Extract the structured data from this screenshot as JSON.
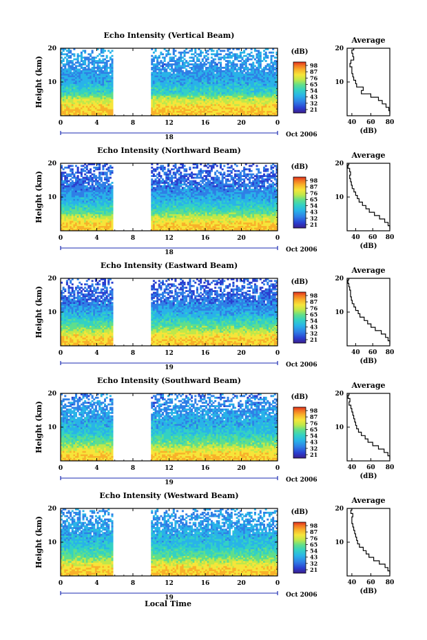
{
  "figure": {
    "x_title": "Local Time",
    "colorbar_unit": "(dB)",
    "colorbar_ticks": [
      "98",
      "87",
      "76",
      "65",
      "54",
      "43",
      "32",
      "21"
    ],
    "colors": {
      "colormap": [
        "#3c1e8c",
        "#2a3fd0",
        "#2f7fe6",
        "#29b3e8",
        "#33d1c4",
        "#5fde8c",
        "#bfe84a",
        "#f6e53a",
        "#f8b12a",
        "#f27622",
        "#e0301e"
      ],
      "gap": "#ffffff",
      "axis": "#000000",
      "date_line": "#1a2ab0"
    }
  },
  "chart_data": [
    {
      "type": "heatmap",
      "title": "Echo Intensity (Vertical Beam)",
      "ylabel": "Height (km)",
      "xlabel": "",
      "xlim": [
        0,
        24
      ],
      "ylim": [
        0,
        20
      ],
      "xticks": [
        "0",
        "4",
        "8",
        "12",
        "16",
        "20",
        "0"
      ],
      "yticks": [
        "10",
        "20"
      ],
      "date_mark": "18",
      "date_label": "Oct 2006",
      "colorbar": {
        "unit": "(dB)",
        "ticks": [
          98,
          87,
          76,
          65,
          54,
          43,
          32,
          21
        ],
        "range": [
          21,
          98
        ]
      },
      "data_gap_hours": [
        5.8,
        9.9
      ],
      "profile": {
        "title": "Average",
        "xlabel": "(dB)",
        "xlim": [
          35,
          80
        ],
        "ylim": [
          0,
          20
        ],
        "xticks": [
          "40",
          "60",
          "80"
        ],
        "yticks": [
          "10",
          "20"
        ],
        "height_km": [
          20,
          19,
          18,
          17,
          16,
          15,
          14,
          13,
          12,
          11,
          10,
          9,
          8,
          7,
          6,
          5,
          4,
          3,
          2,
          1
        ],
        "mean_db": [
          42,
          40,
          41,
          42,
          39,
          38,
          40,
          40,
          41,
          42,
          44,
          45,
          52,
          50,
          60,
          68,
          72,
          76,
          79,
          80
        ]
      }
    },
    {
      "type": "heatmap",
      "title": "Echo Intensity (Northward Beam)",
      "ylabel": "Height (km)",
      "xlabel": "",
      "xlim": [
        0,
        24
      ],
      "ylim": [
        0,
        20
      ],
      "xticks": [
        "0",
        "4",
        "8",
        "12",
        "16",
        "20",
        "0"
      ],
      "yticks": [
        "10",
        "20"
      ],
      "date_mark": "18",
      "date_label": "Oct 2006",
      "colorbar": {
        "unit": "(dB)",
        "ticks": [
          98,
          87,
          76,
          65,
          54,
          43,
          32,
          21
        ],
        "range": [
          21,
          98
        ]
      },
      "data_gap_hours": [
        5.8,
        9.9
      ],
      "profile": {
        "title": "Average",
        "xlabel": "(dB)",
        "xlim": [
          30,
          80
        ],
        "ylim": [
          0,
          20
        ],
        "xticks": [
          "40",
          "60",
          "80"
        ],
        "yticks": [
          "10",
          "20"
        ],
        "height_km": [
          20,
          19,
          18,
          17,
          16,
          15,
          14,
          13,
          12,
          11,
          10,
          9,
          8,
          7,
          6,
          5,
          4,
          3,
          2,
          1
        ],
        "mean_db": [
          32,
          31,
          33,
          34,
          33,
          34,
          35,
          36,
          38,
          40,
          42,
          44,
          48,
          52,
          56,
          62,
          68,
          74,
          78,
          80
        ]
      }
    },
    {
      "type": "heatmap",
      "title": "Echo Intensity (Eastward Beam)",
      "ylabel": "Height (km)",
      "xlabel": "",
      "xlim": [
        0,
        24
      ],
      "ylim": [
        0,
        20
      ],
      "xticks": [
        "0",
        "4",
        "8",
        "12",
        "16",
        "20",
        "0"
      ],
      "yticks": [
        "10",
        "20"
      ],
      "date_mark": "19",
      "date_label": "Oct 2006",
      "colorbar": {
        "unit": "(dB)",
        "ticks": [
          98,
          87,
          76,
          65,
          54,
          43,
          32,
          21
        ],
        "range": [
          21,
          98
        ]
      },
      "data_gap_hours": [
        5.8,
        9.9
      ],
      "profile": {
        "title": "Average",
        "xlabel": "(dB)",
        "xlim": [
          30,
          80
        ],
        "ylim": [
          0,
          20
        ],
        "xticks": [
          "40",
          "60",
          "80"
        ],
        "yticks": [
          "10",
          "20"
        ],
        "height_km": [
          20,
          19,
          18,
          17,
          16,
          15,
          14,
          13,
          12,
          11,
          10,
          9,
          8,
          7,
          6,
          5,
          4,
          3,
          2,
          1
        ],
        "mean_db": [
          32,
          31,
          32,
          33,
          34,
          34,
          35,
          36,
          38,
          40,
          43,
          45,
          50,
          54,
          58,
          63,
          70,
          75,
          78,
          80
        ]
      }
    },
    {
      "type": "heatmap",
      "title": "Echo Intensity (Southward Beam)",
      "ylabel": "Height (km)",
      "xlabel": "",
      "xlim": [
        0,
        24
      ],
      "ylim": [
        0,
        20
      ],
      "xticks": [
        "0",
        "4",
        "8",
        "12",
        "16",
        "20",
        "0"
      ],
      "yticks": [
        "10",
        "20"
      ],
      "date_mark": "19",
      "date_label": "Oct 2006",
      "colorbar": {
        "unit": "(dB)",
        "ticks": [
          98,
          87,
          76,
          65,
          54,
          43,
          32,
          21
        ],
        "range": [
          21,
          98
        ]
      },
      "data_gap_hours": [
        5.8,
        9.9
      ],
      "profile": {
        "title": "Average",
        "xlabel": "(dB)",
        "xlim": [
          35,
          80
        ],
        "ylim": [
          0,
          20
        ],
        "xticks": [
          "40",
          "60",
          "80"
        ],
        "yticks": [
          "10",
          "20"
        ],
        "height_km": [
          20,
          19,
          18,
          17,
          16,
          15,
          14,
          13,
          12,
          11,
          10,
          9,
          8,
          7,
          6,
          5,
          4,
          3,
          2,
          1
        ],
        "mean_db": [
          37,
          36,
          38,
          37,
          39,
          40,
          41,
          42,
          43,
          44,
          45,
          47,
          50,
          54,
          57,
          62,
          68,
          74,
          78,
          80
        ]
      }
    },
    {
      "type": "heatmap",
      "title": "Echo Intensity (Westward Beam)",
      "ylabel": "Height (km)",
      "xlabel": "Local Time",
      "xlim": [
        0,
        24
      ],
      "ylim": [
        0,
        20
      ],
      "xticks": [
        "0",
        "4",
        "8",
        "12",
        "16",
        "20",
        "0"
      ],
      "yticks": [
        "10",
        "20"
      ],
      "date_mark": "19",
      "date_label": "Oct 2006",
      "colorbar": {
        "unit": "(dB)",
        "ticks": [
          98,
          87,
          76,
          65,
          54,
          43,
          32,
          21
        ],
        "range": [
          21,
          98
        ]
      },
      "data_gap_hours": [
        5.8,
        9.9
      ],
      "profile": {
        "title": "Average",
        "xlabel": "(dB)",
        "xlim": [
          35,
          80
        ],
        "ylim": [
          0,
          20
        ],
        "xticks": [
          "40",
          "60",
          "80"
        ],
        "yticks": [
          "10",
          "20"
        ],
        "height_km": [
          20,
          19,
          18,
          17,
          16,
          15,
          14,
          13,
          12,
          11,
          10,
          9,
          8,
          7,
          6,
          5,
          4,
          3,
          2,
          1
        ],
        "mean_db": [
          40,
          39,
          41,
          40,
          40,
          41,
          42,
          43,
          44,
          45,
          46,
          48,
          52,
          55,
          58,
          63,
          69,
          75,
          78,
          80
        ]
      }
    }
  ]
}
